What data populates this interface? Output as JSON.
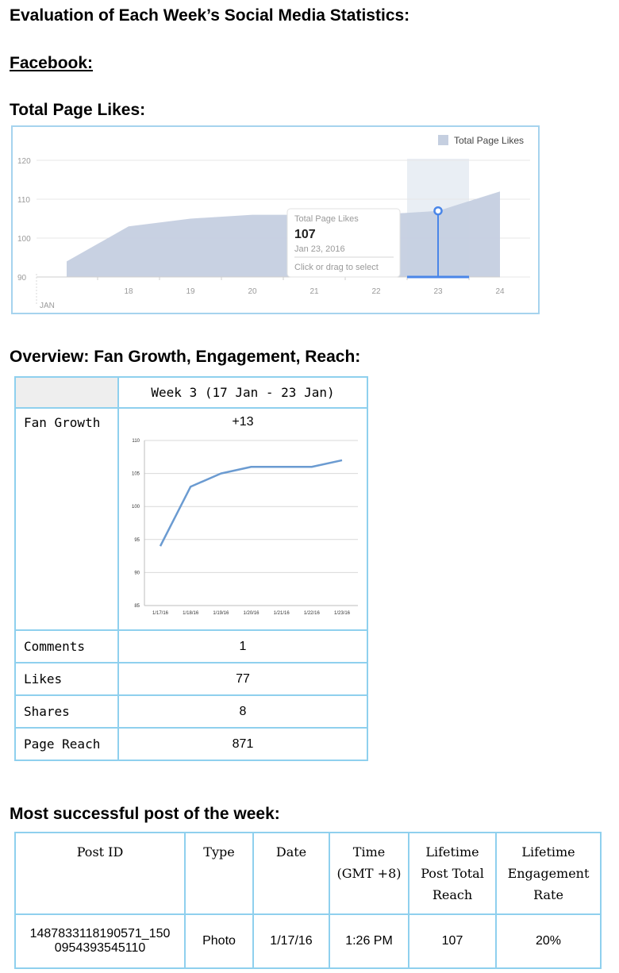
{
  "heading": "Evaluation of Each Week’s Social Media Statistics:",
  "platform": "Facebook:",
  "likes_heading": "Total Page Likes:",
  "overview_heading": "Overview: Fan Growth, Engagement, Reach:",
  "post_heading": "Most successful post of the week:",
  "fb_chart": {
    "legend": "Total Page Likes",
    "tooltip": {
      "title": "Total Page Likes",
      "value": "107",
      "date": "Jan 23, 2016",
      "hint": "Click or drag to select"
    },
    "month_label": "JAN",
    "colors": {
      "area": "#c5cfe0",
      "highlight": "#e9eef4",
      "marker": "#4a86e8",
      "legend": "#c5cfe0"
    }
  },
  "chart_data": [
    {
      "type": "area",
      "title": "",
      "x": [
        "17",
        "18",
        "19",
        "20",
        "21",
        "22",
        "23",
        "24"
      ],
      "x_tick_labels": [
        "18",
        "19",
        "20",
        "21",
        "22",
        "23",
        "24"
      ],
      "series": [
        {
          "name": "Total Page Likes",
          "values": [
            94,
            103,
            105,
            106,
            106,
            106,
            107,
            112
          ]
        }
      ],
      "y_ticks": [
        "90",
        "100",
        "110",
        "120"
      ],
      "ylim": [
        90,
        120
      ],
      "grid": true,
      "legend_position": "top-right"
    },
    {
      "type": "line",
      "title": "",
      "categories": [
        "1/17/16",
        "1/18/16",
        "1/19/16",
        "1/20/16",
        "1/21/16",
        "1/22/16",
        "1/23/16"
      ],
      "series": [
        {
          "values": [
            94,
            103,
            105,
            106,
            106,
            106,
            107
          ]
        }
      ],
      "y_ticks": [
        "85",
        "90",
        "95",
        "100",
        "105",
        "110"
      ],
      "ylim": [
        85,
        110
      ],
      "grid": true,
      "color": "#6b9bd1"
    }
  ],
  "overview": {
    "header_label": "Week 3 (17 Jan - 23 Jan)",
    "rows": [
      {
        "label": "Fan Growth",
        "value": "+13"
      },
      {
        "label": "Comments",
        "value": "1"
      },
      {
        "label": "Likes",
        "value": "77"
      },
      {
        "label": "Shares",
        "value": "8"
      },
      {
        "label": "Page Reach",
        "value": "871"
      }
    ]
  },
  "post": {
    "headers": [
      "Post ID",
      "Type",
      "Date",
      "Time\n(GMT +8)",
      "Lifetime\nPost Total\nReach",
      "Lifetime\nEngagement\nRate"
    ],
    "row": [
      "1487833118190571_150\n0954393545110",
      "Photo",
      "1/17/16",
      "1:26 PM",
      "107",
      "20%"
    ]
  }
}
